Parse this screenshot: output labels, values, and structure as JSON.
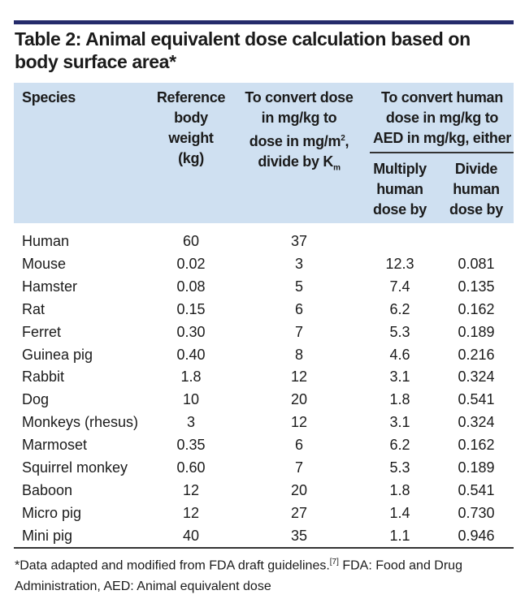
{
  "title_lines": [
    "Table 2: Animal equivalent dose calculation based on",
    "body surface area*"
  ],
  "table": {
    "header": {
      "species": "Species",
      "weight": [
        "Reference",
        "body",
        "weight",
        "(kg)"
      ],
      "km": {
        "line1": "To convert dose",
        "line2": "in mg/kg to",
        "line3": "dose in mg/m",
        "line3_sup": "2",
        "line3_end": ",",
        "line4": "divide by K",
        "line4_sub": "m"
      },
      "aed": [
        "To convert human",
        "dose in mg/kg to",
        "AED in mg/kg, either"
      ],
      "multiply": [
        "Multiply",
        "human",
        "dose by"
      ],
      "divide": [
        "Divide",
        "human",
        "dose by"
      ]
    },
    "rows": [
      [
        "Human",
        "60",
        "37"
      ],
      [
        "Mouse",
        "0.02",
        "3",
        "12.3",
        "0.081"
      ],
      [
        "Hamster",
        "0.08",
        "5",
        "7.4",
        "0.135"
      ],
      [
        "Rat",
        "0.15",
        "6",
        "6.2",
        "0.162"
      ],
      [
        "Ferret",
        "0.30",
        "7",
        "5.3",
        "0.189"
      ],
      [
        "Guinea pig",
        "0.40",
        "8",
        "4.6",
        "0.216"
      ],
      [
        "Rabbit",
        "1.8",
        "12",
        "3.1",
        "0.324"
      ],
      [
        "Dog",
        "10",
        "20",
        "1.8",
        "0.541"
      ],
      [
        "Monkeys (rhesus)",
        "3",
        "12",
        "3.1",
        "0.324"
      ],
      [
        "Marmoset",
        "0.35",
        "6",
        "6.2",
        "0.162"
      ],
      [
        "Squirrel monkey",
        "0.60",
        "7",
        "5.3",
        "0.189"
      ],
      [
        "Baboon",
        "12",
        "20",
        "1.8",
        "0.541"
      ],
      [
        "Micro pig",
        "12",
        "27",
        "1.4",
        "0.730"
      ],
      [
        "Mini pig",
        "40",
        "35",
        "1.1",
        "0.946"
      ]
    ]
  },
  "footnote": {
    "text1": "*Data adapted and modified from FDA draft guidelines.",
    "ref": "[7]",
    "text2": " FDA: Food and Drug Administration, AED: Animal equivalent dose"
  }
}
